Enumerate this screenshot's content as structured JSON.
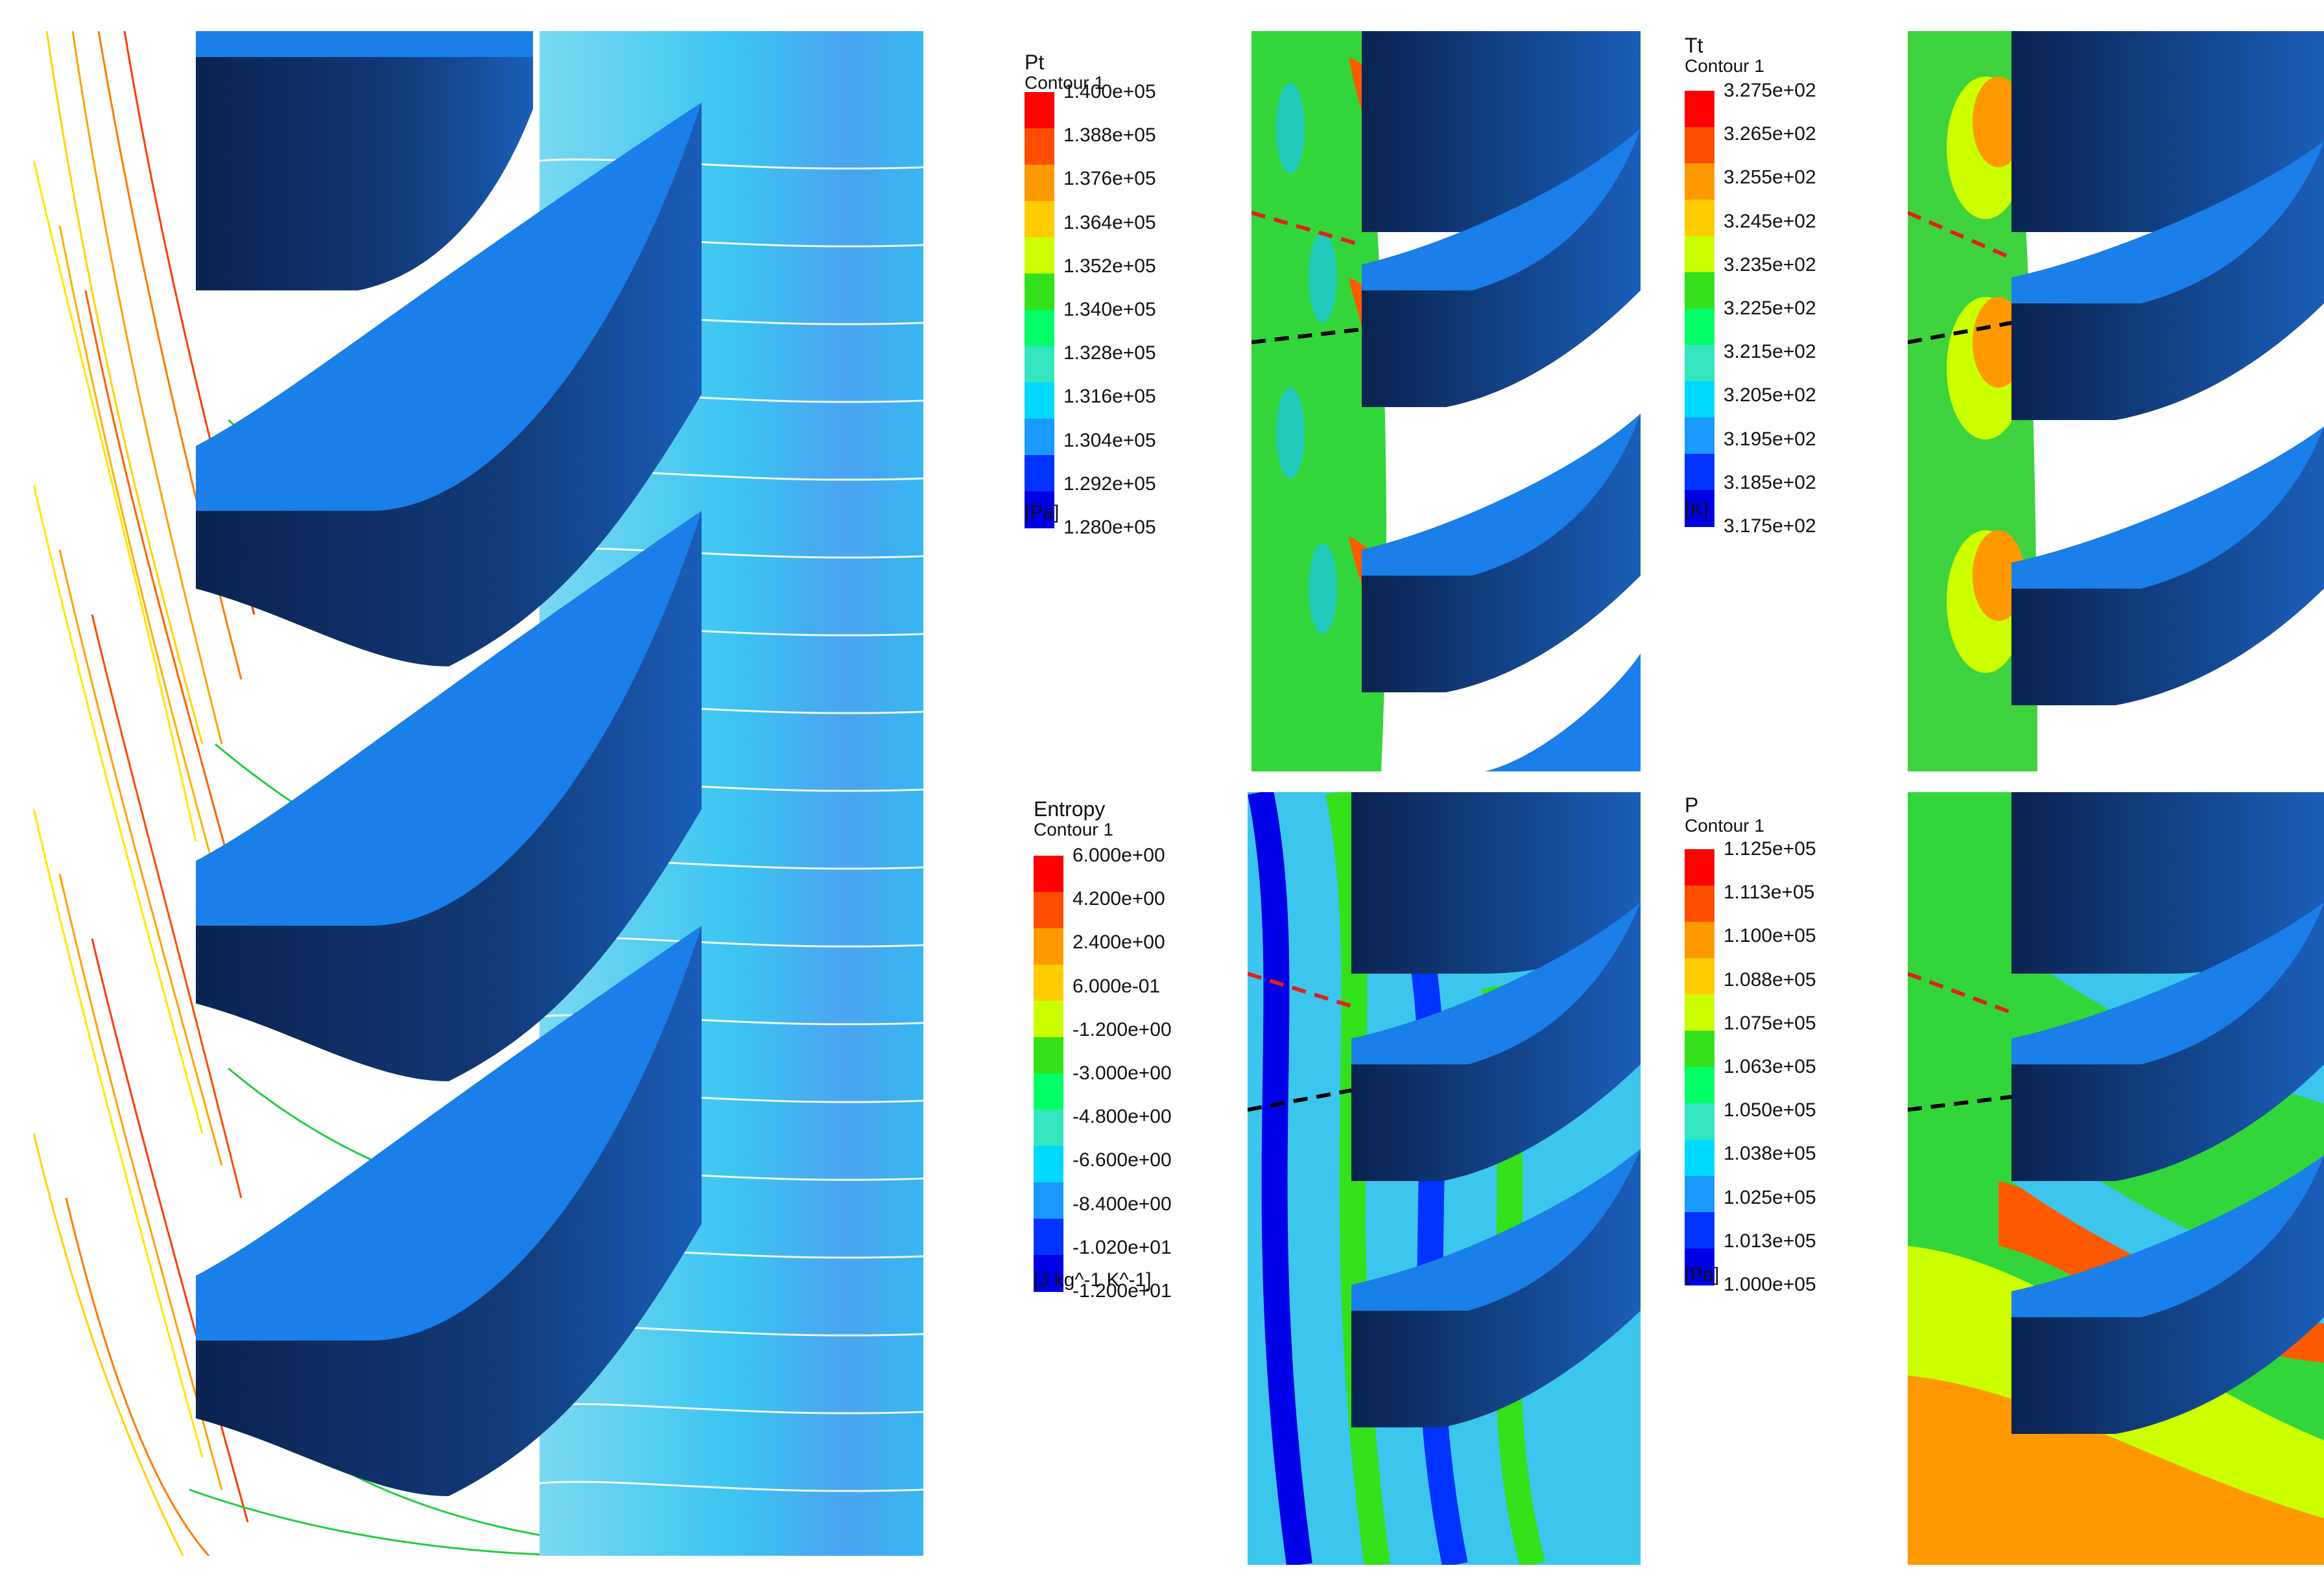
{
  "legends": [
    {
      "id": "pt",
      "title": "Pt",
      "subtitle": "Contour 1",
      "ticks": [
        "1.400e+05",
        "1.388e+05",
        "1.376e+05",
        "1.364e+05",
        "1.352e+05",
        "1.340e+05",
        "1.328e+05",
        "1.316e+05",
        "1.304e+05",
        "1.292e+05",
        "1.280e+05"
      ],
      "unit": "[Pa]"
    },
    {
      "id": "tt",
      "title": "Tt",
      "subtitle": "Contour 1",
      "ticks": [
        "3.275e+02",
        "3.265e+02",
        "3.255e+02",
        "3.245e+02",
        "3.235e+02",
        "3.225e+02",
        "3.215e+02",
        "3.205e+02",
        "3.195e+02",
        "3.185e+02",
        "3.175e+02"
      ],
      "unit": "[K]"
    },
    {
      "id": "entropy",
      "title": "Entropy",
      "subtitle": "Contour 1",
      "ticks": [
        "6.000e+00",
        "4.200e+00",
        "2.400e+00",
        "6.000e-01",
        "-1.200e+00",
        "-3.000e+00",
        "-4.800e+00",
        "-6.600e+00",
        "-8.400e+00",
        "-1.020e+01",
        "-1.200e+01"
      ],
      "unit": "[J kg^-1 K^-1]"
    },
    {
      "id": "p",
      "title": "P",
      "subtitle": "Contour 1",
      "ticks": [
        "1.125e+05",
        "1.113e+05",
        "1.100e+05",
        "1.088e+05",
        "1.075e+05",
        "1.063e+05",
        "1.050e+05",
        "1.038e+05",
        "1.025e+05",
        "1.013e+05",
        "1.000e+05"
      ],
      "unit": "[Pa]"
    }
  ],
  "colormap": [
    "#ff0000",
    "#ff4d00",
    "#ff9900",
    "#ffcc00",
    "#ccff00",
    "#33e01a",
    "#00ff66",
    "#33e6c0",
    "#00d9ff",
    "#1a99ff",
    "#0033ff",
    "#0000e6"
  ],
  "colors": {
    "blade_face": "#1a7fe8",
    "blade_side": "#0b2a5c",
    "red_dash": "#e0201a",
    "black_dash": "#000000"
  }
}
